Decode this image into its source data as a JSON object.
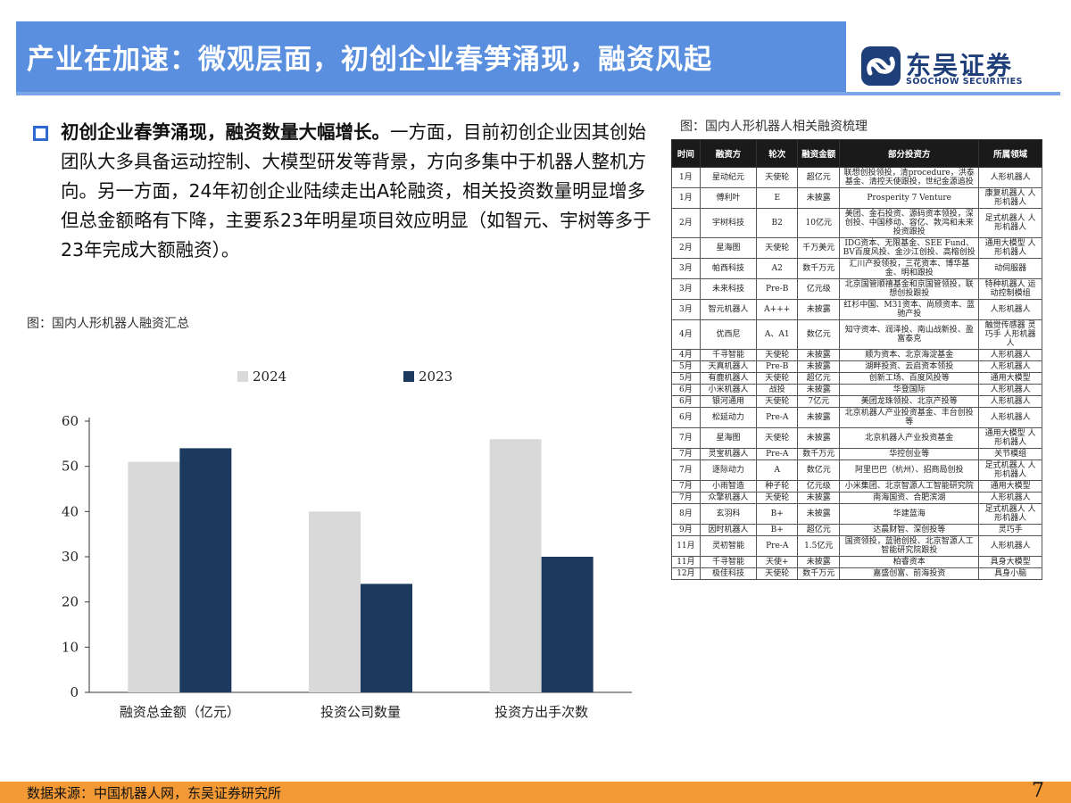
{
  "header": {
    "title": "产业在加速：微观层面，初创企业春笋涌现，融资风起",
    "logo_cn": "东吴证券",
    "logo_en": "SOOCHOW SECURITIES"
  },
  "body": {
    "bold_lead": "初创企业春笋涌现，融资数量大幅增长。",
    "text": "一方面，目前初创企业因其创始团队大多具备运动控制、大模型研发等背景，方向多集中于机器人整机方向。另一方面，24年初创企业陆续走出A轮融资，相关投资数量明显增多但总金额略有下降，主要系23年明星项目效应明显（如智元、宇树等多于23年完成大额融资）。"
  },
  "chart_caption": "图：国内人形机器人融资汇总",
  "table_caption": "图：国内人形机器人相关融资梳理",
  "colors": {
    "s2024": "#d9d9d9",
    "s2023": "#1b3a5e",
    "accent": "#5a8fe0",
    "footer": "#f39a36"
  },
  "chart_data": {
    "type": "bar",
    "categories": [
      "融资总金额（亿元）",
      "投资公司数量",
      "投资方出手次数"
    ],
    "series": [
      {
        "name": "2024",
        "values": [
          51,
          40,
          56
        ]
      },
      {
        "name": "2023",
        "values": [
          54,
          24,
          30
        ]
      }
    ],
    "yticks": [
      "0",
      "10",
      "20",
      "30",
      "40",
      "50",
      "60"
    ],
    "ylim": [
      0,
      60
    ],
    "legend": "top"
  },
  "table": {
    "headers": [
      "时间",
      "融资方",
      "轮次",
      "融资金额",
      "部分投资方",
      "所属领域"
    ],
    "rows": [
      [
        "1月",
        "星动纪元",
        "天使轮",
        "超亿元",
        "联想创投领投，清procedure，洪泰基金、清控天使跟投，世纪金源追投",
        "人形机器人"
      ],
      [
        "1月",
        "傅利叶",
        "E",
        "未披露",
        "Prosperity 7 Venture",
        "康复机器人 人形机器人"
      ],
      [
        "2月",
        "宇树科技",
        "B2",
        "10亿元",
        "美团、金石投资、源码资本领投，深创投、中国移动、容亿、敦鸿和未来投资跟投",
        "足式机器人 人形机器人"
      ],
      [
        "2月",
        "星海图",
        "天使轮",
        "千万美元",
        "IDG资本、无限基金、SEE Fund、BV百度风投、金沙江创投、高榕创投",
        "通用大模型 人形机器人"
      ],
      [
        "3月",
        "帕西科技",
        "A2",
        "数千万元",
        "汇川产投领投，三花资本、博华基金、明和跟投",
        "动伺服器"
      ],
      [
        "3月",
        "未来科技",
        "Pre-B",
        "亿元级",
        "北京国管顺禧基金和京国管领投，联想创投跟投",
        "特种机器人 运动控制模组"
      ],
      [
        "3月",
        "智元机器人",
        "A+++",
        "未披露",
        "红杉中国、M31资本、尚颀资本、蓝驰产投",
        "人形机器人"
      ],
      [
        "4月",
        "优西尼",
        "A、A1",
        "数亿元",
        "知守资本、润泽投、南山战新投、盈富泰克",
        "触觉传感器 灵巧手 人形机器人"
      ],
      [
        "4月",
        "千寻智能",
        "天使轮",
        "未披露",
        "顺为资本、北京海淀基金",
        "人形机器人"
      ],
      [
        "5月",
        "天真机器人",
        "Pre-B",
        "未披露",
        "湖畔投资、云启资本领投",
        "人形机器人"
      ],
      [
        "5月",
        "有鹿机器人",
        "天使轮",
        "超亿元",
        "创新工场、百度风投等",
        "通用大模型"
      ],
      [
        "6月",
        "小米机器人",
        "战投",
        "未披露",
        "华登国际",
        "人形机器人"
      ],
      [
        "6月",
        "银河通用",
        "天使轮",
        "7亿元",
        "美团龙珠领投、北京产投等",
        "人形机器人"
      ],
      [
        "6月",
        "松延动力",
        "Pre-A",
        "未披露",
        "北京机器人产业投资基金、丰台创投等",
        "人形机器人"
      ],
      [
        "7月",
        "星海图",
        "天使轮",
        "未披露",
        "北京机器人产业投资基金",
        "通用大模型 人形机器人"
      ],
      [
        "7月",
        "灵宝机器人",
        "Pre-A",
        "数千万元",
        "华控创业等",
        "关节模组"
      ],
      [
        "7月",
        "逐际动力",
        "A",
        "数亿元",
        "阿里巴巴（杭州）、招商局创投",
        "足式机器人 人形机器人"
      ],
      [
        "7月",
        "小雨智造",
        "种子轮",
        "亿元级",
        "小米集团、北京智源人工智能研究院",
        "通用大模型"
      ],
      [
        "7月",
        "众擎机器人",
        "天使轮",
        "未披露",
        "南海国资、合肥滨湖",
        "人形机器人"
      ],
      [
        "8月",
        "玄羽科",
        "B+",
        "未披露",
        "华建蓝海",
        "足式机器人 人形机器人"
      ],
      [
        "9月",
        "因时机器人",
        "B+",
        "超亿元",
        "达晨财智、深创投等",
        "灵巧手"
      ],
      [
        "11月",
        "灵初智能",
        "Pre-A",
        "1.5亿元",
        "国资领投，蓝驰创投、北京智源人工智能研究院跟投",
        "人形机器人"
      ],
      [
        "11月",
        "千寻智能",
        "天使+",
        "未披露",
        "柏睿资本",
        "具身大模型"
      ],
      [
        "12月",
        "极佳科技",
        "天使轮",
        "数千万元",
        "嘉盛创富、前海投资",
        "具身小脑"
      ]
    ]
  },
  "footer": {
    "source": "数据来源：中国机器人网，东吴证券研究所",
    "page": "7"
  }
}
